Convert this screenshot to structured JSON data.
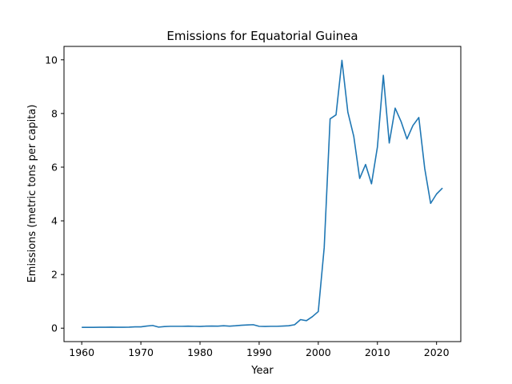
{
  "chart_data": {
    "type": "line",
    "title": "Emissions for Equatorial Guinea",
    "xlabel": "Year",
    "ylabel": "Emissions (metric tons per capita)",
    "xlim": [
      1957,
      2024.1
    ],
    "ylim": [
      -0.5,
      10.5
    ],
    "xticks": [
      1960,
      1970,
      1980,
      1990,
      2000,
      2010,
      2020
    ],
    "yticks": [
      0,
      2,
      4,
      6,
      8,
      10
    ],
    "grid": false,
    "series": [
      {
        "color": "#1f77b4",
        "x": [
          1960,
          1961,
          1962,
          1963,
          1964,
          1965,
          1966,
          1967,
          1968,
          1969,
          1970,
          1971,
          1972,
          1973,
          1974,
          1975,
          1976,
          1977,
          1978,
          1979,
          1980,
          1981,
          1982,
          1983,
          1984,
          1985,
          1986,
          1987,
          1988,
          1989,
          1990,
          1991,
          1992,
          1993,
          1994,
          1995,
          1996,
          1997,
          1998,
          1999,
          2000,
          2001,
          2002,
          2003,
          2004,
          2005,
          2006,
          2007,
          2008,
          2009,
          2010,
          2011,
          2012,
          2013,
          2014,
          2015,
          2016,
          2017,
          2018,
          2019,
          2020,
          2021
        ],
        "values": [
          0.03,
          0.03,
          0.03,
          0.035,
          0.035,
          0.04,
          0.035,
          0.035,
          0.04,
          0.05,
          0.05,
          0.08,
          0.1,
          0.04,
          0.06,
          0.07,
          0.07,
          0.07,
          0.075,
          0.07,
          0.065,
          0.075,
          0.08,
          0.075,
          0.09,
          0.075,
          0.09,
          0.11,
          0.12,
          0.13,
          0.07,
          0.065,
          0.07,
          0.07,
          0.08,
          0.09,
          0.13,
          0.32,
          0.28,
          0.43,
          0.62,
          3.0,
          7.8,
          7.95,
          9.98,
          8.05,
          7.15,
          5.58,
          6.1,
          5.38,
          6.75,
          9.42,
          6.9,
          8.2,
          7.7,
          7.05,
          7.55,
          7.85,
          5.95,
          4.65,
          5.0,
          5.22
        ]
      }
    ]
  }
}
